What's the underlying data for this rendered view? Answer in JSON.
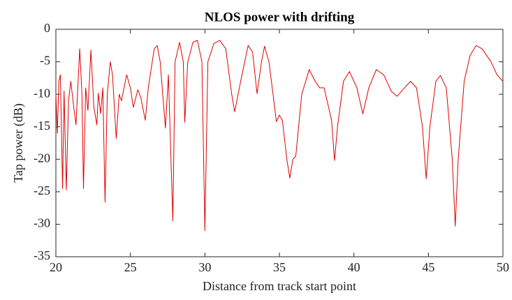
{
  "chart_data": {
    "type": "line",
    "title": "NLOS power with drifting",
    "xlabel": "Distance from track start point",
    "ylabel": "Tap power (dB)",
    "xlim": [
      20,
      50
    ],
    "xticks": [
      20,
      25,
      30,
      35,
      40,
      45,
      50
    ],
    "ylim": [
      -35,
      0
    ],
    "yticks": [
      -35,
      -30,
      -25,
      -20,
      -15,
      -10,
      -5,
      0
    ],
    "grid": false,
    "series": [
      {
        "name": "Tap power",
        "color": "#e00000",
        "x": [
          20.0,
          20.1,
          20.2,
          20.3,
          20.45,
          20.55,
          20.7,
          20.85,
          21.0,
          21.2,
          21.35,
          21.6,
          21.75,
          21.85,
          22.0,
          22.15,
          22.35,
          22.55,
          22.75,
          22.85,
          23.0,
          23.15,
          23.3,
          23.45,
          23.65,
          23.8,
          24.05,
          24.25,
          24.4,
          24.75,
          25.0,
          25.2,
          25.5,
          25.7,
          26.0,
          26.2,
          26.6,
          26.8,
          27.0,
          27.35,
          27.55,
          27.85,
          28.0,
          28.3,
          28.55,
          28.65,
          28.85,
          29.2,
          29.5,
          29.8,
          30.0,
          30.2,
          30.6,
          31.0,
          31.4,
          31.8,
          32.0,
          32.4,
          32.9,
          33.2,
          33.5,
          33.8,
          34.0,
          34.3,
          34.8,
          35.0,
          35.2,
          35.5,
          35.7,
          35.9,
          36.1,
          36.5,
          37.0,
          37.4,
          37.7,
          38.0,
          38.5,
          38.7,
          38.9,
          39.3,
          39.7,
          40.2,
          40.6,
          41.0,
          41.5,
          42.0,
          42.5,
          42.9,
          43.4,
          43.8,
          44.2,
          44.6,
          44.85,
          45.1,
          45.5,
          45.8,
          46.2,
          46.6,
          46.8,
          47.0,
          47.4,
          47.8,
          48.2,
          48.6,
          49.2,
          49.6,
          50.0
        ],
        "values": [
          -10,
          -16,
          -8,
          -7,
          -24.5,
          -9.5,
          -24.7,
          -11,
          -8,
          -12,
          -14.7,
          -3,
          -10,
          -24.5,
          -9,
          -12.5,
          -3.2,
          -12,
          -14.7,
          -9.8,
          -13,
          -9,
          -26.6,
          -10,
          -5,
          -7,
          -16.8,
          -10,
          -11,
          -7,
          -9,
          -12,
          -9.3,
          -10.5,
          -14,
          -9,
          -3,
          -2.5,
          -5,
          -15.2,
          -7,
          -29.5,
          -5,
          -2,
          -5,
          -14.3,
          -5,
          -2,
          -1.7,
          -5,
          -31,
          -5,
          -2.2,
          -1.7,
          -3,
          -10,
          -12.7,
          -8,
          -2.5,
          -3.5,
          -9.9,
          -5,
          -2.6,
          -5,
          -14.2,
          -13.2,
          -14,
          -20,
          -22.9,
          -20,
          -19.5,
          -10,
          -6.2,
          -8,
          -9,
          -9,
          -14,
          -20.2,
          -15,
          -8,
          -6.5,
          -9,
          -13,
          -9,
          -6.2,
          -7,
          -9.5,
          -10.3,
          -9,
          -8,
          -9,
          -15,
          -23,
          -15,
          -8,
          -7.1,
          -9,
          -20,
          -30.3,
          -20,
          -8,
          -4,
          -2.5,
          -3,
          -5,
          -7,
          -8
        ]
      }
    ]
  }
}
